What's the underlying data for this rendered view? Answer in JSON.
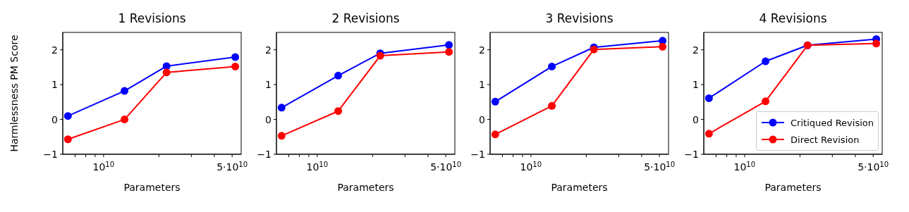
{
  "chart_data": [
    {
      "type": "line",
      "title": "1 Revisions",
      "xlabel": "Parameters",
      "ylabel": "Harmlessness PM Score",
      "x": [
        6400000000.0,
        13000000000.0,
        22000000000.0,
        52000000000.0
      ],
      "log": "x",
      "marker": "circle",
      "xlim": [
        6000000000.0,
        56000000000.0
      ],
      "ylim": [
        -1,
        2.5
      ],
      "xticks": [
        {
          "value": 7000000000.0,
          "label": null
        },
        {
          "value": 8000000000.0,
          "label": null
        },
        {
          "value": 9000000000.0,
          "label": null
        },
        {
          "value": 10000000000.0,
          "label": "10$^{10}$"
        },
        {
          "value": 20000000000.0,
          "label": null
        },
        {
          "value": 30000000000.0,
          "label": null
        },
        {
          "value": 40000000000.0,
          "label": null
        },
        {
          "value": 50000000000.0,
          "label": "5·10$^{10}$"
        }
      ],
      "yticks": [
        -1,
        0,
        1,
        2
      ],
      "series": [
        {
          "color": "#0000ff",
          "values": [
            0.1,
            0.82,
            1.53,
            1.79
          ]
        },
        {
          "color": "#ff0000",
          "values": [
            -0.57,
            0,
            1.35,
            1.52
          ]
        }
      ]
    },
    {
      "type": "line",
      "title": "2 Revisions",
      "xlabel": "Parameters",
      "x": [
        6400000000.0,
        13000000000.0,
        22000000000.0,
        52000000000.0
      ],
      "log": "x",
      "marker": "circle",
      "xlim": [
        6000000000.0,
        56000000000.0
      ],
      "ylim": [
        -1,
        2.5
      ],
      "xticks": [
        {
          "value": 7000000000.0,
          "label": null
        },
        {
          "value": 8000000000.0,
          "label": null
        },
        {
          "value": 9000000000.0,
          "label": null
        },
        {
          "value": 10000000000.0,
          "label": "10$^{10}$"
        },
        {
          "value": 20000000000.0,
          "label": null
        },
        {
          "value": 30000000000.0,
          "label": null
        },
        {
          "value": 40000000000.0,
          "label": null
        },
        {
          "value": 50000000000.0,
          "label": "5·10$^{10}$"
        }
      ],
      "yticks": [
        -1,
        0,
        1,
        2
      ],
      "series": [
        {
          "color": "#0000ff",
          "values": [
            0.34,
            1.26,
            1.9,
            2.14
          ]
        },
        {
          "color": "#ff0000",
          "values": [
            -0.47,
            0.24,
            1.83,
            1.94
          ]
        }
      ]
    },
    {
      "type": "line",
      "title": "3 Revisions",
      "xlabel": "Parameters",
      "x": [
        6400000000.0,
        13000000000.0,
        22000000000.0,
        52000000000.0
      ],
      "log": "x",
      "marker": "circle",
      "xlim": [
        6000000000.0,
        56000000000.0
      ],
      "ylim": [
        -1,
        2.5
      ],
      "xticks": [
        {
          "value": 7000000000.0,
          "label": null
        },
        {
          "value": 8000000000.0,
          "label": null
        },
        {
          "value": 9000000000.0,
          "label": null
        },
        {
          "value": 10000000000.0,
          "label": "10$^{10}$"
        },
        {
          "value": 20000000000.0,
          "label": null
        },
        {
          "value": 30000000000.0,
          "label": null
        },
        {
          "value": 40000000000.0,
          "label": null
        },
        {
          "value": 50000000000.0,
          "label": "5·10$^{10}$"
        }
      ],
      "yticks": [
        -1,
        0,
        1,
        2
      ],
      "series": [
        {
          "color": "#0000ff",
          "values": [
            0.51,
            1.52,
            2.07,
            2.26
          ]
        },
        {
          "color": "#ff0000",
          "values": [
            -0.43,
            0.39,
            2.01,
            2.09
          ]
        }
      ]
    },
    {
      "type": "line",
      "title": "4 Revisions",
      "xlabel": "Parameters",
      "x": [
        6400000000.0,
        13000000000.0,
        22000000000.0,
        52000000000.0
      ],
      "log": "x",
      "marker": "circle",
      "legend": "bottom right",
      "xlim": [
        6000000000.0,
        56000000000.0
      ],
      "ylim": [
        -1,
        2.5
      ],
      "xticks": [
        {
          "value": 7000000000.0,
          "label": null
        },
        {
          "value": 8000000000.0,
          "label": null
        },
        {
          "value": 9000000000.0,
          "label": null
        },
        {
          "value": 10000000000.0,
          "label": "10$^{10}$"
        },
        {
          "value": 20000000000.0,
          "label": null
        },
        {
          "value": 30000000000.0,
          "label": null
        },
        {
          "value": 40000000000.0,
          "label": null
        },
        {
          "value": 50000000000.0,
          "label": "5·10$^{10}$"
        }
      ],
      "yticks": [
        -1,
        0,
        1,
        2
      ],
      "series": [
        {
          "name": "Critiqued Revision",
          "color": "#0000ff",
          "values": [
            0.61,
            1.67,
            2.13,
            2.31
          ]
        },
        {
          "name": "Direct Revision",
          "color": "#ff0000",
          "values": [
            -0.41,
            0.52,
            2.13,
            2.18
          ]
        }
      ]
    }
  ]
}
